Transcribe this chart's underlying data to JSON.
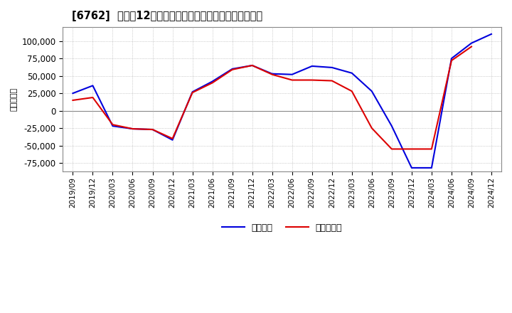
{
  "title": "[6762]  利益の12か月移動合計の対前年同期増減額の推移",
  "ylabel": "（百万円）",
  "ylim": [
    -87500,
    120000
  ],
  "yticks": [
    -75000,
    -50000,
    -25000,
    0,
    25000,
    50000,
    75000,
    100000
  ],
  "legend_labels": [
    "経常利益",
    "当期純利益"
  ],
  "line_colors": [
    "#0000dd",
    "#dd0000"
  ],
  "background_color": "#ffffff",
  "plot_bg_color": "#ffffff",
  "grid_color": "#aaaaaa",
  "dates": [
    "2019/09",
    "2019/12",
    "2020/03",
    "2020/06",
    "2020/09",
    "2020/12",
    "2021/03",
    "2021/06",
    "2021/09",
    "2021/12",
    "2022/03",
    "2022/06",
    "2022/09",
    "2022/12",
    "2023/03",
    "2023/06",
    "2023/09",
    "2023/12",
    "2024/03",
    "2024/06",
    "2024/09",
    "2024/12"
  ],
  "keijo_rieki": [
    25000,
    36000,
    -22000,
    -26000,
    -27000,
    -42000,
    27000,
    42000,
    60000,
    65000,
    53000,
    52000,
    64000,
    62000,
    54000,
    28000,
    -22000,
    -82000,
    -82000,
    75000,
    97000,
    110000
  ],
  "touki_jun_rieki": [
    15000,
    19000,
    -20000,
    -26000,
    -27000,
    -40000,
    26000,
    40000,
    59000,
    65000,
    52000,
    44000,
    44000,
    43000,
    28000,
    -25000,
    -55000,
    -55000,
    -55000,
    72000,
    92000,
    null
  ]
}
